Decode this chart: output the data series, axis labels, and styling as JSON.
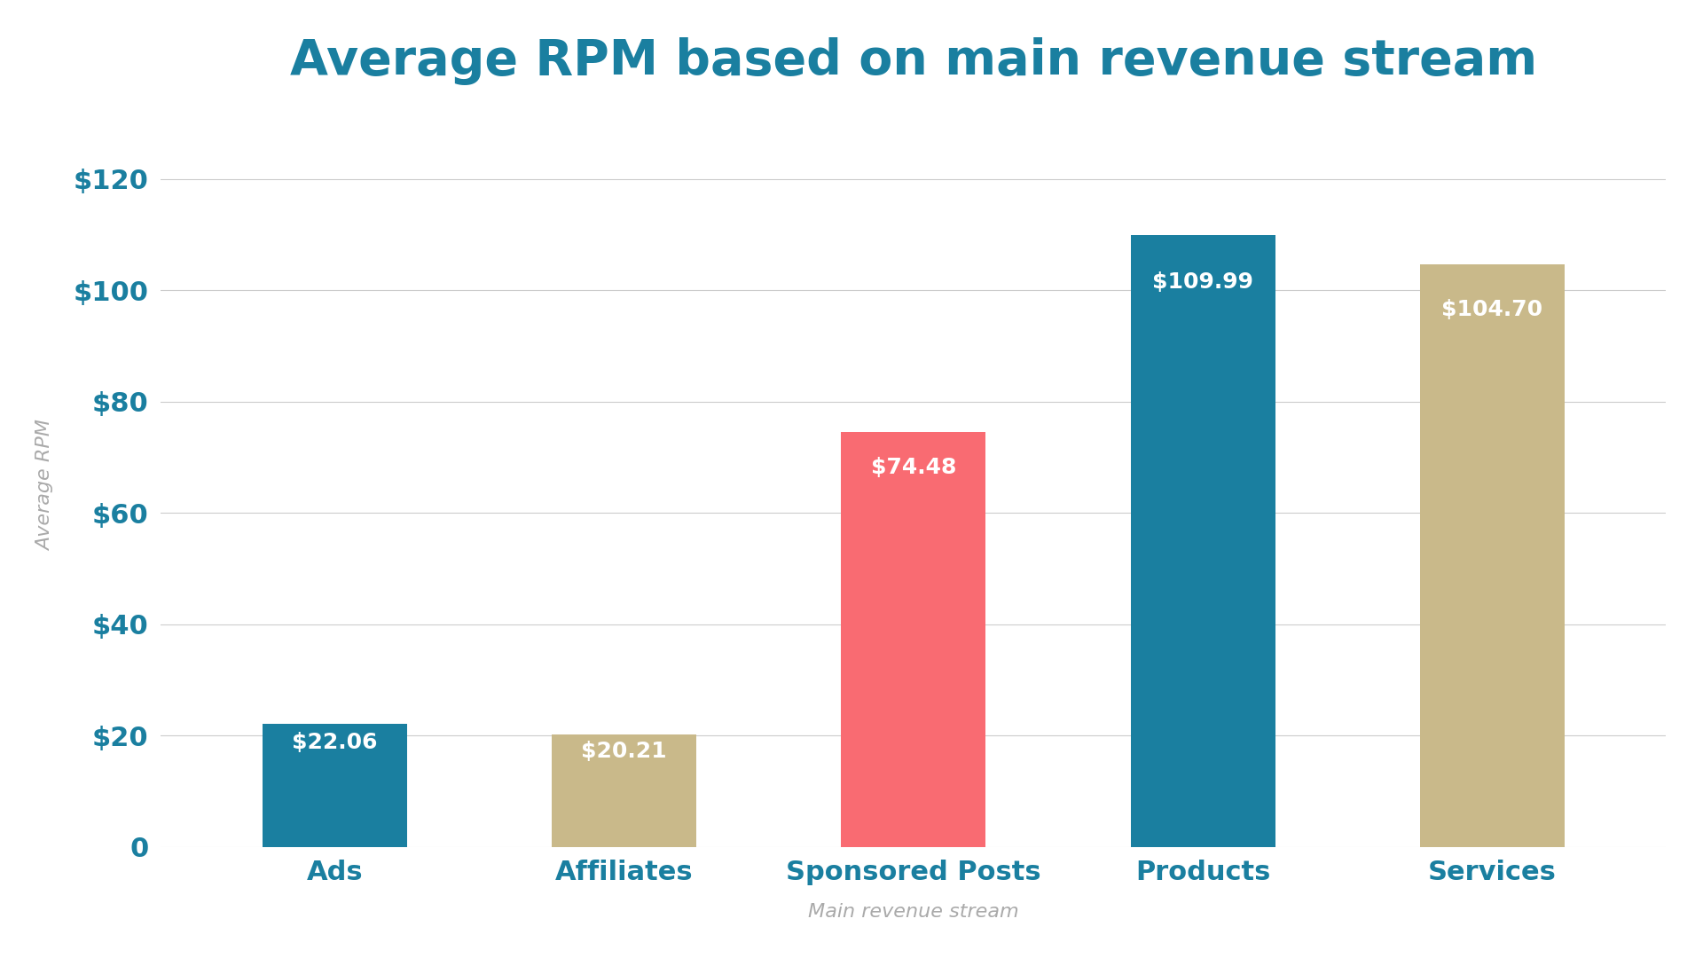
{
  "title": "Average RPM based on main revenue stream",
  "xlabel": "Main revenue stream",
  "ylabel": "Average RPM",
  "categories": [
    "Ads",
    "Affiliates",
    "Sponsored Posts",
    "Products",
    "Services"
  ],
  "values": [
    22.06,
    20.21,
    74.48,
    109.99,
    104.7
  ],
  "bar_colors": [
    "#1a7fa0",
    "#c9b98a",
    "#f96b72",
    "#1a7fa0",
    "#c9b98a"
  ],
  "label_colors": [
    "#ffffff",
    "#ffffff",
    "#ffffff",
    "#ffffff",
    "#ffffff"
  ],
  "tick_label_colors": [
    "#1a7fa0",
    "#1a7fa0",
    "#1a7fa0",
    "#1a7fa0",
    "#1a7fa0"
  ],
  "title_color": "#1a7fa0",
  "axis_label_color": "#aaaaaa",
  "ytick_color": "#1a7fa0",
  "ylim": [
    0,
    130
  ],
  "yticks": [
    0,
    20,
    40,
    60,
    80,
    100,
    120
  ],
  "background_color": "#ffffff",
  "title_fontsize": 40,
  "axis_label_fontsize": 16,
  "ytick_fontsize": 22,
  "xtick_fontsize": 22,
  "bar_label_fontsize": 18,
  "bar_width": 0.5,
  "grid_color": "#cccccc",
  "grid_linewidth": 0.8
}
